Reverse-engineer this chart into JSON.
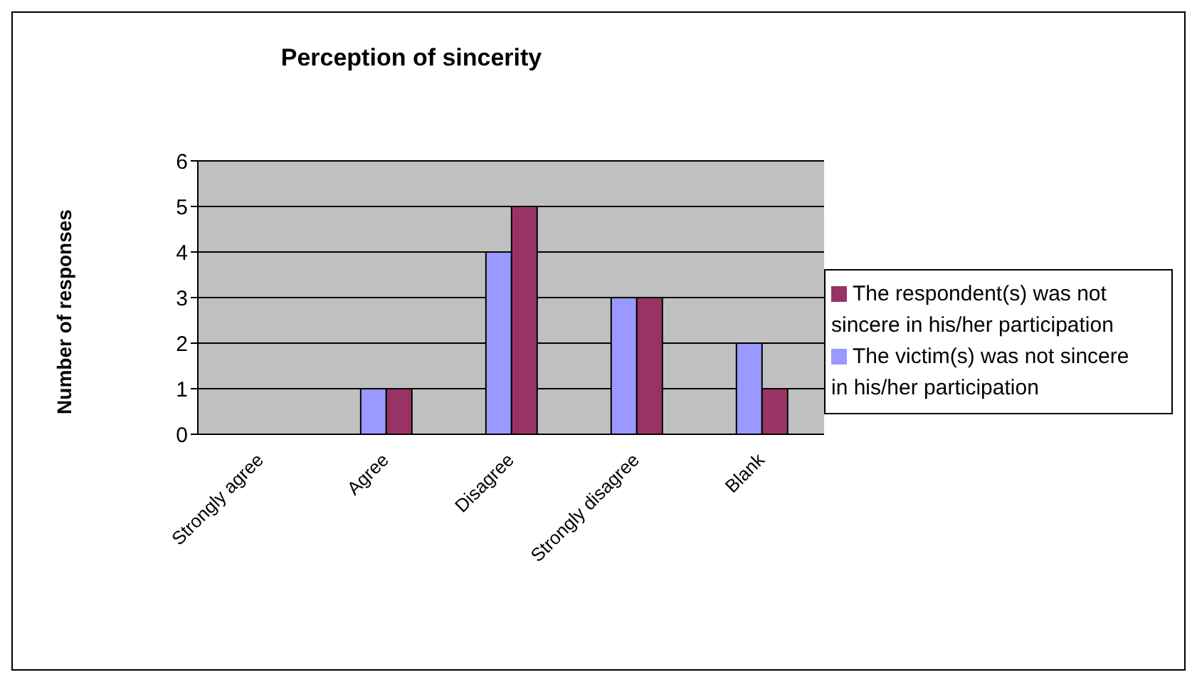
{
  "chart_data": {
    "type": "bar",
    "title": "Perception of sincerity",
    "ylabel": "Number of responses",
    "categories": [
      "Strongly agree",
      "Agree",
      "Disagree",
      "Strongly disagree",
      "Blank"
    ],
    "series": [
      {
        "name": "The victim(s) was not sincere in his/her participation",
        "color": "#9999ff",
        "values": [
          0,
          1,
          4,
          3,
          2
        ]
      },
      {
        "name": "The respondent(s) was not sincere in his/her participation",
        "color": "#993366",
        "values": [
          0,
          1,
          5,
          3,
          1
        ]
      }
    ],
    "ylim": [
      0,
      6
    ],
    "yticks": [
      0,
      1,
      2,
      3,
      4,
      5,
      6
    ],
    "grid": "y",
    "legend": "right"
  }
}
